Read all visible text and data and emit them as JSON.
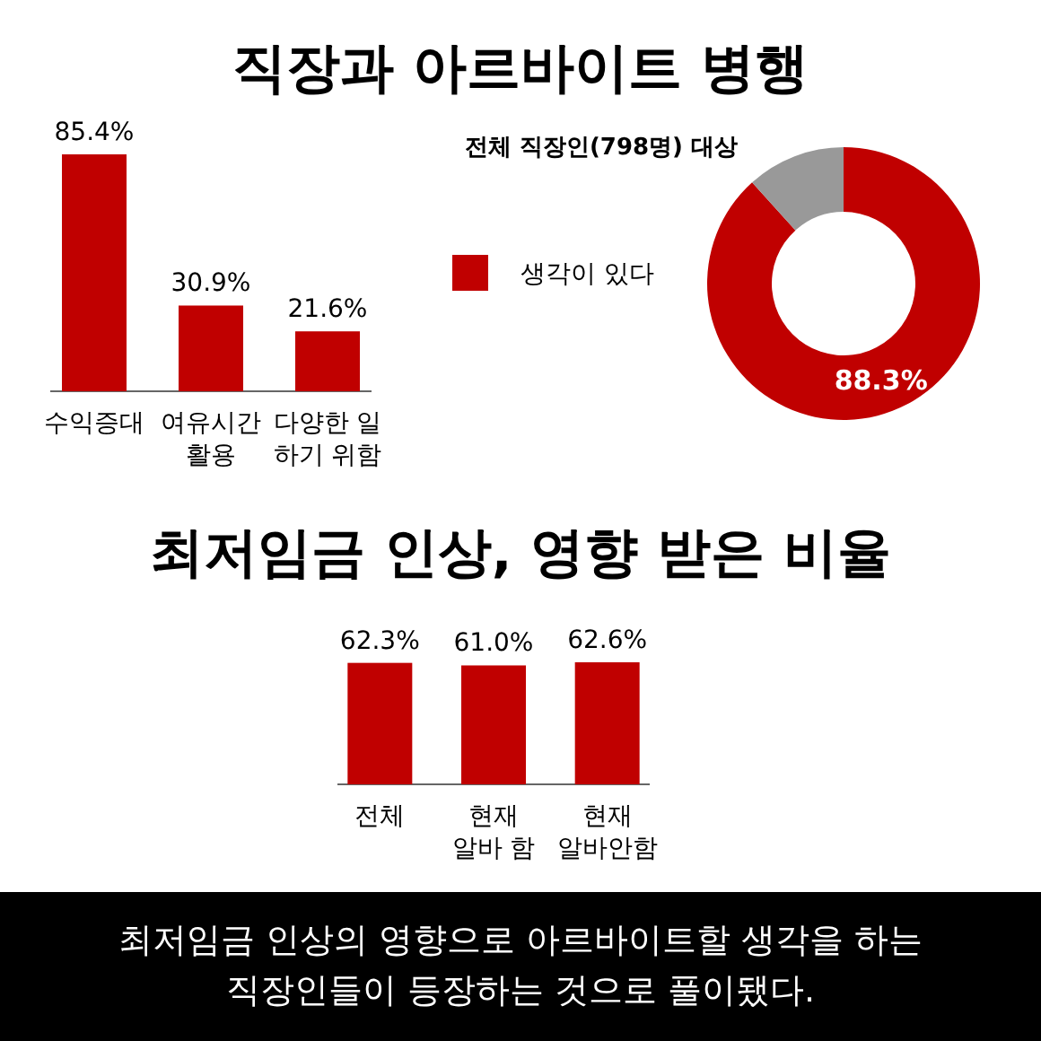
{
  "chart_data": [
    {
      "type": "bar",
      "title": "직장과 아르바이트 병행",
      "categories": [
        "수익증대",
        "여유시간\n활용",
        "다양한 일\n하기 위함"
      ],
      "values": [
        85.4,
        30.9,
        21.6
      ],
      "value_labels": [
        "85.4%",
        "30.9%",
        "21.6%"
      ],
      "color": "#c00000"
    },
    {
      "type": "donut",
      "subtitle": "전체 직장인(798명) 대상",
      "categories": [
        "생각이 있다",
        null
      ],
      "values": [
        88.3,
        11.7
      ],
      "colors": [
        "#c00000",
        "#999999"
      ],
      "value_labels": [
        "88.3%",
        null
      ],
      "legend": "left"
    },
    {
      "type": "bar",
      "title": "최저임금 인상, 영향 받은 비율",
      "categories": [
        "전체",
        "현재\n알바 함",
        "현재\n알바안함"
      ],
      "values": [
        62.3,
        61.0,
        62.6
      ],
      "value_labels": [
        "62.3%",
        "61.0%",
        "62.6%"
      ],
      "color": "#c00000",
      "annotations": [
        "최저임금 인상의 영향으로 아르바이트할 생각을 하는\n직장인들이 등장하는 것으로 풀이됐다."
      ]
    }
  ]
}
